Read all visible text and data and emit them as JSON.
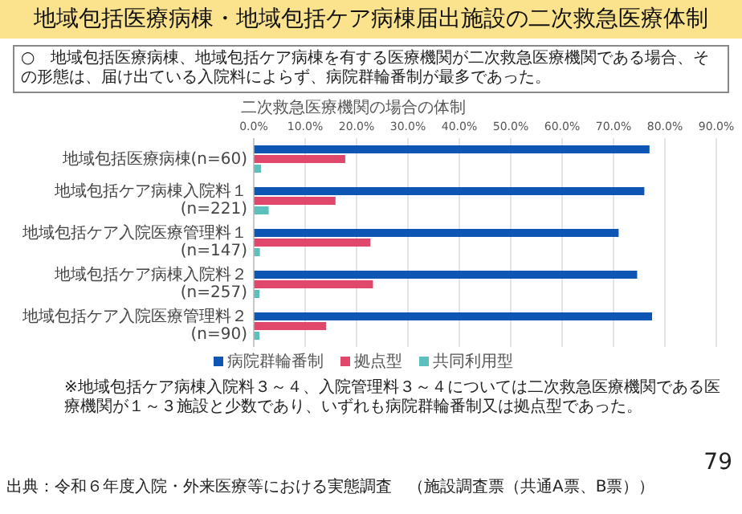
{
  "chart_data": {
    "type": "bar",
    "orientation": "horizontal",
    "title": "地域包括医療病棟・地域包括ケア病棟届出施設の二次救急医療体制",
    "subtitle": "二次救急医療機関の場合の体制",
    "categories": [
      "地域包括医療病棟(n=60)",
      "地域包括ケア病棟入院料１(n=221)",
      "地域包括ケア入院医療管理料１(n=147)",
      "地域包括ケア病棟入院料２(n=257)",
      "地域包括ケア入院医療管理料２(n=90)"
    ],
    "series": [
      {
        "name": "病院群輪番制",
        "color": "#0e56b4",
        "values": [
          77,
          76,
          71,
          74.6,
          77.5
        ]
      },
      {
        "name": "拠点型",
        "color": "#e0476b",
        "values": [
          17.8,
          15.9,
          22.7,
          23.2,
          14.1
        ]
      },
      {
        "name": "共同利用型",
        "color": "#5cc0bc",
        "values": [
          1.4,
          2.9,
          1.2,
          1.1,
          1.1
        ]
      }
    ],
    "xlim": [
      0,
      90
    ],
    "xticks": [
      {
        "value": 0,
        "label": "0.0%"
      },
      {
        "value": 10,
        "label": "10.0%"
      },
      {
        "value": 20,
        "label": "20.0%"
      },
      {
        "value": 30,
        "label": "30.0%"
      },
      {
        "value": 40,
        "label": "40.0%"
      },
      {
        "value": 50,
        "label": "50.0%"
      },
      {
        "value": 60,
        "label": "60.0%"
      },
      {
        "value": 70,
        "label": "70.0%"
      },
      {
        "value": 80,
        "label": "80.0%"
      },
      {
        "value": 90,
        "label": "90.0%"
      }
    ],
    "grid": "x",
    "legend": "bottom",
    "annotations": [
      "○　地域包括医療病棟、地域包括ケア病棟を有する医療機関が二次救急医療機関である場合、その形態は、届け出ている入院料によらず、病院群輪番制が最多であった。",
      "※地域包括ケア病棟入院料３～４、入院管理料３～４については二次救急医療機関である医療機関が１～３施設と少数であり、いずれも病院群輪番制又は拠点型であった。",
      "出典：令和６年度入院・外来医療等における実態調査　（施設調査票（共通A票、B票））",
      "79"
    ]
  }
}
